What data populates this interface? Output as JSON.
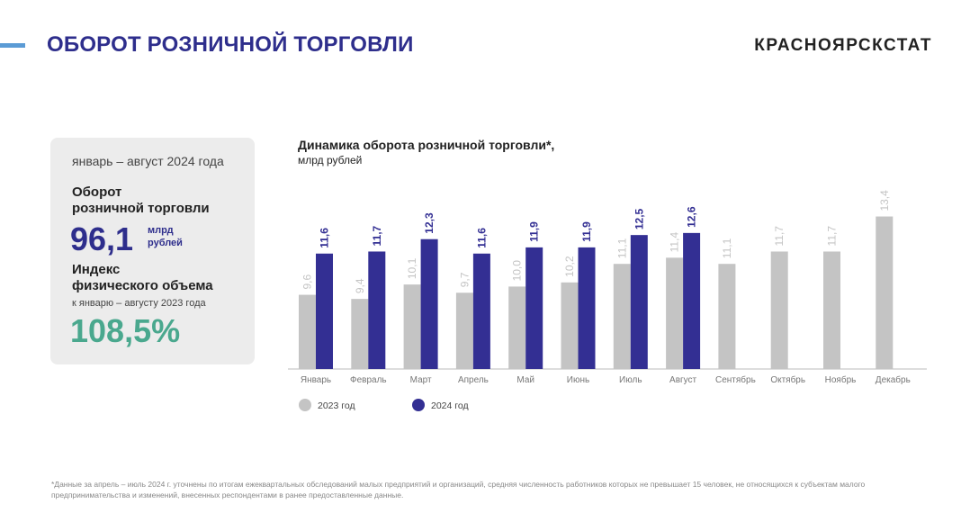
{
  "header": {
    "title": "ОБОРОТ РОЗНИЧНОЙ ТОРГОВЛИ",
    "brand": "КРАСНОЯРСКСТАТ"
  },
  "card": {
    "period": "январь – август 2024 года",
    "turnover_label_1": "Оборот",
    "turnover_label_2": "розничной торговли",
    "turnover_value": "96,1",
    "unit_1": "млрд",
    "unit_2": "рублей",
    "index_label_1": "Индекс",
    "index_label_2": "физического объема",
    "index_note": "к январю – августу 2023 года",
    "index_value": "108,5%"
  },
  "chart_data": {
    "type": "bar",
    "title": "Динамика оборота розничной торговли*,",
    "subtitle": "млрд рублей",
    "categories": [
      "Январь",
      "Февраль",
      "Март",
      "Апрель",
      "Май",
      "Июнь",
      "Июль",
      "Август",
      "Сентябрь",
      "Октябрь",
      "Ноябрь",
      "Декабрь"
    ],
    "series": [
      {
        "name": "2023 год",
        "color": "#c4c4c4",
        "values": [
          9.6,
          9.4,
          10.1,
          9.7,
          10.0,
          10.2,
          11.1,
          11.4,
          11.1,
          11.7,
          11.7,
          13.4
        ],
        "labels": [
          "9,6",
          "9,4",
          "10,1",
          "9,7",
          "10,0",
          "10,2",
          "11,1",
          "11,4",
          "11,1",
          "11,7",
          "11,7",
          "13,4"
        ]
      },
      {
        "name": "2024 год",
        "color": "#332f93",
        "values": [
          11.6,
          11.7,
          12.3,
          11.6,
          11.9,
          11.9,
          12.5,
          12.6,
          null,
          null,
          null,
          null
        ],
        "labels": [
          "11,6",
          "11,7",
          "12,3",
          "11,6",
          "11,9",
          "11,9",
          "12,5",
          "12,6",
          null,
          null,
          null,
          null
        ]
      }
    ],
    "ylim": [
      6,
      14
    ],
    "grid": false,
    "legend": "bottom-left"
  },
  "footnote": "*Данные за апрель – июль 2024 г. уточнены по итогам ежеквартальных обследований малых предприятий и организаций, средняя численность работников которых не превышает 15 человек, не относящихся к субъектам малого предпринимательства и изменений, внесенных респондентами в ранее предоставленные данные."
}
